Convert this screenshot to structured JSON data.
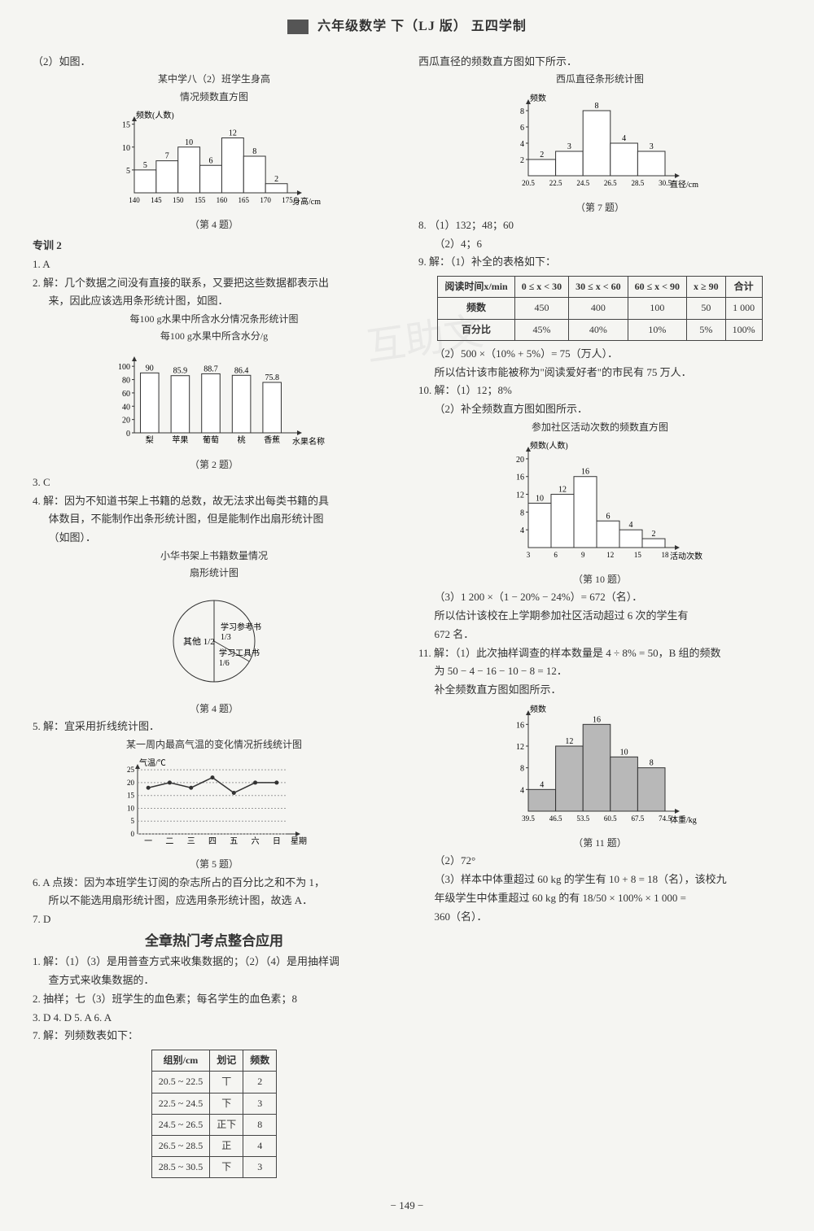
{
  "header": "六年级数学  下（LJ 版）  五四学制",
  "left": {
    "l1": "（2）如图．",
    "chart4_title1": "某中学八（2）班学生身高",
    "chart4_title2": "情况频数直方图",
    "chart4_ylabel": "频数(人数)",
    "chart4_xlabel": "身高/cm",
    "chart4_xcats": [
      "140",
      "145",
      "150",
      "155",
      "160",
      "165",
      "170",
      "175"
    ],
    "chart4_values": [
      5,
      7,
      10,
      6,
      12,
      8,
      2
    ],
    "chart4_yticks": [
      5,
      10,
      15
    ],
    "chart4_caption": "（第 4 题）",
    "zx2": "专训 2",
    "q1a": "1. A",
    "q2a": "2. 解：几个数据之间没有直接的联系，又要把这些数据都表示出",
    "q2b": "来，因此应该选用条形统计图，如图．",
    "chart2_title1": "每100 g水果中所含水分情况条形统计图",
    "chart2_title2": "每100 g水果中所含水分/g",
    "chart2_cats": [
      "梨",
      "苹果",
      "葡萄",
      "桃",
      "香蕉"
    ],
    "chart2_vals": [
      90.0,
      85.9,
      88.7,
      86.4,
      75.8
    ],
    "chart2_xlabel": "水果名称",
    "chart2_yticks": [
      0,
      20,
      40,
      60,
      80,
      100
    ],
    "chart2_caption": "（第 2 题）",
    "q3": "3. C",
    "q4a": "4. 解：因为不知道书架上书籍的总数，故无法求出每类书籍的具",
    "q4b": "体数目，不能制作出条形统计图，但是能制作出扇形统计图",
    "q4c": "（如图）．",
    "pie_title1": "小华书架上书籍数量情况",
    "pie_title2": "扇形统计图",
    "pie_labels": {
      "other": "其他",
      "ref": "学习参考书",
      "tool": "学习工具书"
    },
    "pie_fracs": {
      "other": "1/2",
      "ref": "1/3",
      "tool": "1/6"
    },
    "pie_caption": "（第 4 题）",
    "q5a": "5. 解：宜采用折线统计图．",
    "line_title": "某一周内最高气温的变化情况折线统计图",
    "line_ylabel": "气温/℃",
    "line_xlabel": "星期",
    "line_cats": [
      "一",
      "二",
      "三",
      "四",
      "五",
      "六",
      "日"
    ],
    "line_vals": [
      18,
      20,
      18,
      22,
      16,
      20,
      20
    ],
    "line_yticks": [
      0,
      5,
      10,
      15,
      20,
      25
    ],
    "line_caption": "（第 5 题）",
    "q6a": "6. A  点拨：因为本班学生订阅的杂志所占的百分比之和不为 1，",
    "q6b": "所以不能选用扇形统计图，应选用条形统计图，故选 A．",
    "q7": "7. D",
    "section": "全章热门考点整合应用",
    "s1a": "1. 解：（1）（3）是用普查方式来收集数据的；（2）（4）是用抽样调",
    "s1b": "查方式来收集数据的．",
    "s2": "2. 抽样；七（3）班学生的血色素；每名学生的血色素；8",
    "s345": "3. D   4. D   5. A   6. A",
    "s7": "7. 解：列频数表如下：",
    "tally": {
      "headers": [
        "组别/cm",
        "划记",
        "频数"
      ],
      "rows": [
        [
          "20.5 ~ 22.5",
          "丅",
          "2"
        ],
        [
          "22.5 ~ 24.5",
          "下",
          "3"
        ],
        [
          "24.5 ~ 26.5",
          "正下",
          "8"
        ],
        [
          "26.5 ~ 28.5",
          "正",
          "4"
        ],
        [
          "28.5 ~ 30.5",
          "下",
          "3"
        ]
      ]
    }
  },
  "right": {
    "r1": "西瓜直径的频数直方图如下所示．",
    "chart7_title": "西瓜直径条形统计图",
    "chart7_ylabel": "频数",
    "chart7_xlabel": "直径/cm",
    "chart7_xcats": [
      "20.5",
      "22.5",
      "24.5",
      "26.5",
      "28.5",
      "30.5"
    ],
    "chart7_vals": [
      2,
      3,
      8,
      4,
      3
    ],
    "chart7_yticks": [
      2,
      4,
      6,
      8
    ],
    "chart7_caption": "（第 7 题）",
    "q8a": "8. （1）132；48；60",
    "q8b": "（2）4；6",
    "q9a": "9. 解：（1）补全的表格如下：",
    "table9": {
      "h1": "阅读时间x/min",
      "cols": [
        "0 ≤ x < 30",
        "30 ≤ x < 60",
        "60 ≤ x < 90",
        "x ≥ 90",
        "合计"
      ],
      "r2h": "频数",
      "r2": [
        "450",
        "400",
        "100",
        "50",
        "1 000"
      ],
      "r3h": "百分比",
      "r3": [
        "45%",
        "40%",
        "10%",
        "5%",
        "100%"
      ]
    },
    "q9b": "（2）500 ×（10% + 5%）= 75（万人）．",
    "q9c": "所以估计该市能被称为\"阅读爱好者\"的市民有 75 万人．",
    "q10a": "10. 解：（1）12；8%",
    "q10b": "（2）补全频数直方图如图所示．",
    "chart10_title": "参加社区活动次数的频数直方图",
    "chart10_ylabel": "频数(人数)",
    "chart10_xlabel": "活动次数",
    "chart10_xcats": [
      "3",
      "6",
      "9",
      "12",
      "15",
      "18"
    ],
    "chart10_vals": [
      10,
      12,
      16,
      6,
      4,
      2
    ],
    "chart10_yticks": [
      4,
      8,
      12,
      16,
      20
    ],
    "chart10_caption": "（第 10 题）",
    "q10c": "（3）1 200 ×（1 − 20% − 24%）= 672（名）．",
    "q10d": "所以估计该校在上学期参加社区活动超过 6 次的学生有",
    "q10e": "672 名．",
    "q11a": "11. 解：（1）此次抽样调查的样本数量是 4 ÷ 8% = 50，B 组的频数",
    "q11b": "为 50 − 4 − 16 − 10 − 8 = 12．",
    "q11c": "补全频数直方图如图所示．",
    "chart11_ylabel": "频数",
    "chart11_xlabel": "体重/kg",
    "chart11_xcats": [
      "39.5",
      "46.5",
      "53.5",
      "60.5",
      "67.5",
      "74.5"
    ],
    "chart11_vals": [
      4,
      12,
      16,
      10,
      8
    ],
    "chart11_yticks": [
      4,
      8,
      12,
      16
    ],
    "chart11_caption": "（第 11 题）",
    "q11d": "（2）72°",
    "q11e": "（3）样本中体重超过 60 kg 的学生有 10 + 8 = 18（名），该校九",
    "q11f": "年级学生中体重超过 60 kg 的有",
    "q11g": "360（名）．",
    "frac": "18/50 × 100% × 1 000 ="
  },
  "pagenum": "− 149 −",
  "colors": {
    "bar_fill": "#ffffff",
    "bar_stroke": "#333333",
    "bar_shaded": "#b8b8b8",
    "axis": "#333333",
    "line_stroke": "#333333"
  }
}
